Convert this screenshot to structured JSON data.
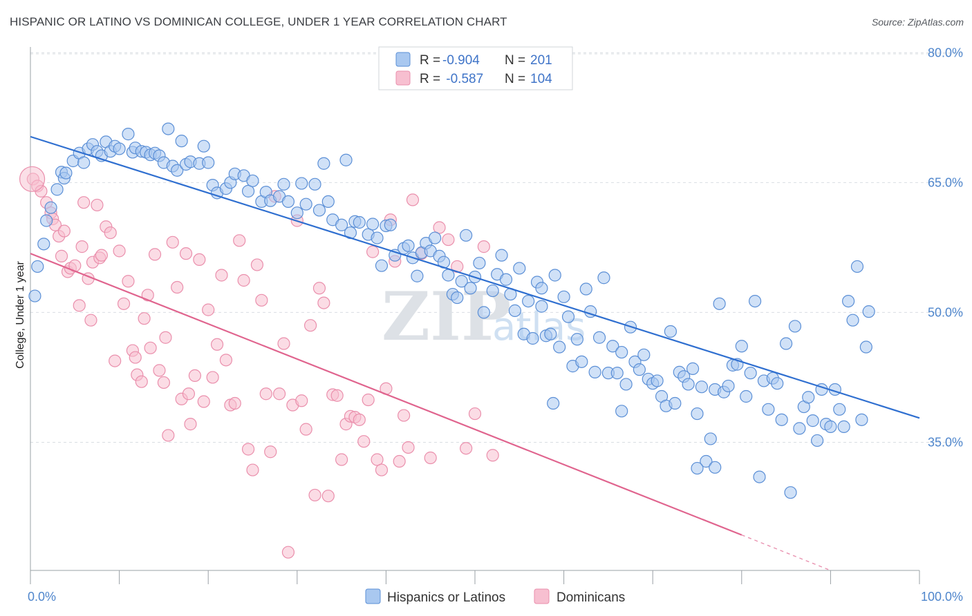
{
  "title": "HISPANIC OR LATINO VS DOMINICAN COLLEGE, UNDER 1 YEAR CORRELATION CHART",
  "source": "Source: ZipAtlas.com",
  "watermark": {
    "zip": "ZIP",
    "atlas": "atlas"
  },
  "colors": {
    "blue_fill": "#a9c8f0",
    "blue_stroke": "#5b8fd6",
    "blue_line": "#2f6fd0",
    "pink_fill": "#f7bfd0",
    "pink_stroke": "#ea8fac",
    "pink_line": "#e0648e",
    "grid": "#d9dde2",
    "tick_text": "#4f86cc"
  },
  "legend": {
    "rows": [
      {
        "r_label": "R = ",
        "r_value": "-0.904",
        "n_label": "N = ",
        "n_value": "201"
      },
      {
        "r_label": "R = ",
        "r_value": " -0.587",
        "n_label": "N = ",
        "n_value": "104"
      }
    ]
  },
  "bottom_legend": [
    "Hispanics or Latinos",
    "Dominicans"
  ],
  "chart_data": {
    "type": "scatter",
    "title": "HISPANIC OR LATINO VS DOMINICAN COLLEGE, UNDER 1 YEAR CORRELATION CHART",
    "xlabel": "",
    "ylabel": "College, Under 1 year",
    "xlim": [
      0,
      100
    ],
    "ylim": [
      20.2,
      80.5
    ],
    "x_tick_labels": [
      "0.0%",
      "100.0%"
    ],
    "y_ticks": [
      35,
      50,
      65,
      80
    ],
    "y_tick_labels": [
      "35.0%",
      "50.0%",
      "65.0%",
      "80.0%"
    ],
    "grid": "horizontal dashed",
    "legend_position": "top-center",
    "series": [
      {
        "name": "Hispanics or Latinos",
        "color": "#5b8fd6",
        "trend": {
          "x": [
            0,
            100
          ],
          "y": [
            70.3,
            37.8
          ]
        },
        "points": [
          [
            0.5,
            51.9
          ],
          [
            0.8,
            55.3
          ],
          [
            1.5,
            57.9
          ],
          [
            1.8,
            60.6
          ],
          [
            2.3,
            62.1
          ],
          [
            3.0,
            64.2
          ],
          [
            3.5,
            66.2
          ],
          [
            3.8,
            65.5
          ],
          [
            4.0,
            66.1
          ],
          [
            4.8,
            67.5
          ],
          [
            5.5,
            68.4
          ],
          [
            6.0,
            67.3
          ],
          [
            6.5,
            68.9
          ],
          [
            7.0,
            69.4
          ],
          [
            7.5,
            68.6
          ],
          [
            8.0,
            68.1
          ],
          [
            8.5,
            69.7
          ],
          [
            9.0,
            68.6
          ],
          [
            9.5,
            69.2
          ],
          [
            10.0,
            68.9
          ],
          [
            11.0,
            70.6
          ],
          [
            11.5,
            68.5
          ],
          [
            11.8,
            69.0
          ],
          [
            12.5,
            68.6
          ],
          [
            13.0,
            68.5
          ],
          [
            13.5,
            68.2
          ],
          [
            14.0,
            68.4
          ],
          [
            14.5,
            68.1
          ],
          [
            15.0,
            67.3
          ],
          [
            15.5,
            71.2
          ],
          [
            16.0,
            66.9
          ],
          [
            16.5,
            66.4
          ],
          [
            17.0,
            69.8
          ],
          [
            17.5,
            67.1
          ],
          [
            18.0,
            67.4
          ],
          [
            19.0,
            67.2
          ],
          [
            19.5,
            69.2
          ],
          [
            20.0,
            67.3
          ],
          [
            20.5,
            64.7
          ],
          [
            21.0,
            63.8
          ],
          [
            22.0,
            64.3
          ],
          [
            22.5,
            65.0
          ],
          [
            23.0,
            66.0
          ],
          [
            24.0,
            65.8
          ],
          [
            24.5,
            64.0
          ],
          [
            25.0,
            65.2
          ],
          [
            26.0,
            62.8
          ],
          [
            26.5,
            63.9
          ],
          [
            27.0,
            62.9
          ],
          [
            28.0,
            63.4
          ],
          [
            28.5,
            64.8
          ],
          [
            29.0,
            62.8
          ],
          [
            30.0,
            61.5
          ],
          [
            30.5,
            64.9
          ],
          [
            31.0,
            62.5
          ],
          [
            32.0,
            64.8
          ],
          [
            32.5,
            61.8
          ],
          [
            33.0,
            67.2
          ],
          [
            33.5,
            62.8
          ],
          [
            34.0,
            60.7
          ],
          [
            35.0,
            60.1
          ],
          [
            35.5,
            67.6
          ],
          [
            36.0,
            59.2
          ],
          [
            36.5,
            60.5
          ],
          [
            37.0,
            60.4
          ],
          [
            38.0,
            59.0
          ],
          [
            38.5,
            60.2
          ],
          [
            39.0,
            58.6
          ],
          [
            39.5,
            55.4
          ],
          [
            40.0,
            60.0
          ],
          [
            40.5,
            60.1
          ],
          [
            41.0,
            56.6
          ],
          [
            42.0,
            57.4
          ],
          [
            42.5,
            57.7
          ],
          [
            43.0,
            56.3
          ],
          [
            43.5,
            54.2
          ],
          [
            44.0,
            56.9
          ],
          [
            44.5,
            58.0
          ],
          [
            45.0,
            57.1
          ],
          [
            45.5,
            58.6
          ],
          [
            46.0,
            56.5
          ],
          [
            46.5,
            55.8
          ],
          [
            47.0,
            54.3
          ],
          [
            47.5,
            52.1
          ],
          [
            48.0,
            51.7
          ],
          [
            48.5,
            53.6
          ],
          [
            49.0,
            58.9
          ],
          [
            49.5,
            52.8
          ],
          [
            50.0,
            54.1
          ],
          [
            50.5,
            55.7
          ],
          [
            51.0,
            50.0
          ],
          [
            52.0,
            52.5
          ],
          [
            52.5,
            54.4
          ],
          [
            53.0,
            56.6
          ],
          [
            53.5,
            53.8
          ],
          [
            54.0,
            52.1
          ],
          [
            54.5,
            50.2
          ],
          [
            55.0,
            55.1
          ],
          [
            55.5,
            47.5
          ],
          [
            56.0,
            51.3
          ],
          [
            56.5,
            47.0
          ],
          [
            57.0,
            53.5
          ],
          [
            57.5,
            52.8
          ],
          [
            58.0,
            47.3
          ],
          [
            58.5,
            47.5
          ],
          [
            59.0,
            54.3
          ],
          [
            59.5,
            46.0
          ],
          [
            60.0,
            51.8
          ],
          [
            60.5,
            49.5
          ],
          [
            61.0,
            43.8
          ],
          [
            61.5,
            46.9
          ],
          [
            62.0,
            44.3
          ],
          [
            62.5,
            52.7
          ],
          [
            63.0,
            50.1
          ],
          [
            63.5,
            43.1
          ],
          [
            64.0,
            47.1
          ],
          [
            64.5,
            54.0
          ],
          [
            65.0,
            43.0
          ],
          [
            65.5,
            46.1
          ],
          [
            66.0,
            43.0
          ],
          [
            66.5,
            45.4
          ],
          [
            67.0,
            41.7
          ],
          [
            67.5,
            48.3
          ],
          [
            68.0,
            44.3
          ],
          [
            68.5,
            43.4
          ],
          [
            69.0,
            45.1
          ],
          [
            69.5,
            42.3
          ],
          [
            70.0,
            41.8
          ],
          [
            70.5,
            42.1
          ],
          [
            71.0,
            40.3
          ],
          [
            71.5,
            39.2
          ],
          [
            72.0,
            47.8
          ],
          [
            72.5,
            39.5
          ],
          [
            73.0,
            43.1
          ],
          [
            73.5,
            42.6
          ],
          [
            74.0,
            41.7
          ],
          [
            74.5,
            43.5
          ],
          [
            75.0,
            38.3
          ],
          [
            75.5,
            41.4
          ],
          [
            76.0,
            32.8
          ],
          [
            76.5,
            35.4
          ],
          [
            77.0,
            41.1
          ],
          [
            77.5,
            51.0
          ],
          [
            78.0,
            40.8
          ],
          [
            78.5,
            41.5
          ],
          [
            79.0,
            43.9
          ],
          [
            79.5,
            44.0
          ],
          [
            80.0,
            46.1
          ],
          [
            80.5,
            40.3
          ],
          [
            81.0,
            43.0
          ],
          [
            81.5,
            51.3
          ],
          [
            82.0,
            31.0
          ],
          [
            82.5,
            42.1
          ],
          [
            83.0,
            38.8
          ],
          [
            83.5,
            42.4
          ],
          [
            84.0,
            41.8
          ],
          [
            84.5,
            37.6
          ],
          [
            85.0,
            46.4
          ],
          [
            85.5,
            29.2
          ],
          [
            86.0,
            48.4
          ],
          [
            86.5,
            36.6
          ],
          [
            87.0,
            39.1
          ],
          [
            87.5,
            40.2
          ],
          [
            88.0,
            37.5
          ],
          [
            88.5,
            35.2
          ],
          [
            89.0,
            41.1
          ],
          [
            89.5,
            37.1
          ],
          [
            90.0,
            36.8
          ],
          [
            90.5,
            41.1
          ],
          [
            91.0,
            38.8
          ],
          [
            91.5,
            36.8
          ],
          [
            92.0,
            51.3
          ],
          [
            92.5,
            49.1
          ],
          [
            93.0,
            55.3
          ],
          [
            93.5,
            37.6
          ],
          [
            94.0,
            46.0
          ],
          [
            94.3,
            50.1
          ],
          [
            77.0,
            32.1
          ],
          [
            66.5,
            38.6
          ],
          [
            57.5,
            50.7
          ],
          [
            58.8,
            39.5
          ],
          [
            75.0,
            32.0
          ]
        ]
      },
      {
        "name": "Dominicans",
        "color": "#ea8fac",
        "trend": {
          "x": [
            0,
            80
          ],
          "y": [
            56.8,
            24.3
          ]
        },
        "trend_dashed": {
          "x": [
            80,
            90
          ],
          "y": [
            24.3,
            20.2
          ]
        },
        "points": [
          [
            0.3,
            65.4
          ],
          [
            0.8,
            64.6
          ],
          [
            1.2,
            64.0
          ],
          [
            1.8,
            62.7
          ],
          [
            2.3,
            61.5
          ],
          [
            2.5,
            60.8
          ],
          [
            2.8,
            60.1
          ],
          [
            3.2,
            58.8
          ],
          [
            3.5,
            56.5
          ],
          [
            3.8,
            59.4
          ],
          [
            4.2,
            54.7
          ],
          [
            4.5,
            55.1
          ],
          [
            5.0,
            55.4
          ],
          [
            5.5,
            50.8
          ],
          [
            5.8,
            57.6
          ],
          [
            6.0,
            62.7
          ],
          [
            6.5,
            53.9
          ],
          [
            6.8,
            49.1
          ],
          [
            7.0,
            55.8
          ],
          [
            7.5,
            62.4
          ],
          [
            7.8,
            56.3
          ],
          [
            8.0,
            56.6
          ],
          [
            8.5,
            59.9
          ],
          [
            9.0,
            59.2
          ],
          [
            9.5,
            44.4
          ],
          [
            10.0,
            57.1
          ],
          [
            10.5,
            51.0
          ],
          [
            11.0,
            53.6
          ],
          [
            11.5,
            45.6
          ],
          [
            11.8,
            44.8
          ],
          [
            12.0,
            42.8
          ],
          [
            12.5,
            42.0
          ],
          [
            12.8,
            49.3
          ],
          [
            13.2,
            52.0
          ],
          [
            13.5,
            45.9
          ],
          [
            14.0,
            56.7
          ],
          [
            14.5,
            43.3
          ],
          [
            15.0,
            41.9
          ],
          [
            15.2,
            47.1
          ],
          [
            15.5,
            35.8
          ],
          [
            16.0,
            58.1
          ],
          [
            16.5,
            52.9
          ],
          [
            17.0,
            40.0
          ],
          [
            17.5,
            56.8
          ],
          [
            17.8,
            40.6
          ],
          [
            18.0,
            37.1
          ],
          [
            18.5,
            42.7
          ],
          [
            19.0,
            56.1
          ],
          [
            19.5,
            39.7
          ],
          [
            20.0,
            50.3
          ],
          [
            20.5,
            42.5
          ],
          [
            21.0,
            46.3
          ],
          [
            21.5,
            54.3
          ],
          [
            22.0,
            44.5
          ],
          [
            22.5,
            39.3
          ],
          [
            23.0,
            39.5
          ],
          [
            23.5,
            58.3
          ],
          [
            24.0,
            53.7
          ],
          [
            24.5,
            34.2
          ],
          [
            25.0,
            31.8
          ],
          [
            25.5,
            55.5
          ],
          [
            26.0,
            51.4
          ],
          [
            26.5,
            40.6
          ],
          [
            27.0,
            33.9
          ],
          [
            27.5,
            63.4
          ],
          [
            28.0,
            40.6
          ],
          [
            28.5,
            46.4
          ],
          [
            29.0,
            22.3
          ],
          [
            29.5,
            39.3
          ],
          [
            30.0,
            60.6
          ],
          [
            30.5,
            39.8
          ],
          [
            31.0,
            36.5
          ],
          [
            31.5,
            48.5
          ],
          [
            32.0,
            28.9
          ],
          [
            32.5,
            52.8
          ],
          [
            33.0,
            51.1
          ],
          [
            33.5,
            28.8
          ],
          [
            34.0,
            40.5
          ],
          [
            34.5,
            40.4
          ],
          [
            35.0,
            33.0
          ],
          [
            35.5,
            37.1
          ],
          [
            36.0,
            38.0
          ],
          [
            36.5,
            37.9
          ],
          [
            37.0,
            37.6
          ],
          [
            37.5,
            35.1
          ],
          [
            38.0,
            39.9
          ],
          [
            38.5,
            57.0
          ],
          [
            39.0,
            33.0
          ],
          [
            39.5,
            31.8
          ],
          [
            40.0,
            41.2
          ],
          [
            40.5,
            60.7
          ],
          [
            41.0,
            55.9
          ],
          [
            41.5,
            32.8
          ],
          [
            42.0,
            38.1
          ],
          [
            42.5,
            34.4
          ],
          [
            43.0,
            63.0
          ],
          [
            44.0,
            56.8
          ],
          [
            45.0,
            33.2
          ],
          [
            46.0,
            59.8
          ],
          [
            47.0,
            58.4
          ],
          [
            48.0,
            55.3
          ],
          [
            49.0,
            34.3
          ],
          [
            50.0,
            38.3
          ],
          [
            51.0,
            57.6
          ],
          [
            52.0,
            33.5
          ]
        ]
      }
    ]
  }
}
